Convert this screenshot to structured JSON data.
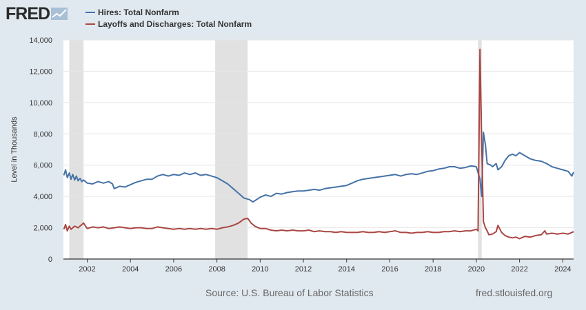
{
  "brand": {
    "logo_text": "FRED",
    "logo_icon": "chart-trend-icon"
  },
  "legend": [
    {
      "label": "Hires: Total Nonfarm",
      "color": "#4572a7"
    },
    {
      "label": "Layoffs and Discharges: Total Nonfarm",
      "color": "#aa4643"
    }
  ],
  "footer": {
    "source": "Source: U.S. Bureau of Labor Statistics",
    "url": "fred.stlouisfed.org"
  },
  "chart_data": {
    "type": "line",
    "ylabel": "Level in Thousands",
    "xlabel": "",
    "xlim": [
      2000.9,
      2024.5
    ],
    "ylim": [
      0,
      14000
    ],
    "y_ticks": [
      0,
      2000,
      4000,
      6000,
      8000,
      10000,
      12000,
      14000
    ],
    "y_tick_labels": [
      "0",
      "2,000",
      "4,000",
      "6,000",
      "8,000",
      "10,000",
      "12,000",
      "14,000"
    ],
    "x_ticks": [
      2002,
      2004,
      2006,
      2008,
      2010,
      2012,
      2014,
      2016,
      2018,
      2020,
      2022,
      2024
    ],
    "x_tick_labels": [
      "2002",
      "2004",
      "2006",
      "2008",
      "2010",
      "2012",
      "2014",
      "2016",
      "2018",
      "2020",
      "2022",
      "2024"
    ],
    "grid": "horizontal",
    "recessions": [
      [
        2001.17,
        2001.83
      ],
      [
        2007.92,
        2009.42
      ],
      [
        2020.08,
        2020.25
      ]
    ],
    "series": [
      {
        "name": "Hires: Total Nonfarm",
        "color": "#4572a7",
        "points": [
          [
            2000.92,
            5350
          ],
          [
            2001.0,
            5700
          ],
          [
            2001.08,
            5200
          ],
          [
            2001.17,
            5500
          ],
          [
            2001.25,
            5100
          ],
          [
            2001.33,
            5400
          ],
          [
            2001.42,
            5050
          ],
          [
            2001.5,
            5300
          ],
          [
            2001.58,
            5000
          ],
          [
            2001.67,
            5150
          ],
          [
            2001.75,
            4950
          ],
          [
            2001.83,
            5050
          ],
          [
            2002.0,
            4850
          ],
          [
            2002.25,
            4800
          ],
          [
            2002.5,
            4950
          ],
          [
            2002.75,
            4850
          ],
          [
            2003.0,
            4950
          ],
          [
            2003.17,
            4800
          ],
          [
            2003.25,
            4500
          ],
          [
            2003.5,
            4650
          ],
          [
            2003.75,
            4600
          ],
          [
            2004.0,
            4750
          ],
          [
            2004.25,
            4900
          ],
          [
            2004.5,
            5000
          ],
          [
            2004.75,
            5100
          ],
          [
            2005.0,
            5100
          ],
          [
            2005.25,
            5300
          ],
          [
            2005.5,
            5400
          ],
          [
            2005.75,
            5300
          ],
          [
            2006.0,
            5400
          ],
          [
            2006.25,
            5350
          ],
          [
            2006.5,
            5500
          ],
          [
            2006.75,
            5400
          ],
          [
            2007.0,
            5500
          ],
          [
            2007.25,
            5350
          ],
          [
            2007.5,
            5400
          ],
          [
            2007.75,
            5300
          ],
          [
            2008.0,
            5200
          ],
          [
            2008.25,
            5000
          ],
          [
            2008.5,
            4800
          ],
          [
            2008.75,
            4500
          ],
          [
            2009.0,
            4200
          ],
          [
            2009.25,
            3900
          ],
          [
            2009.5,
            3800
          ],
          [
            2009.67,
            3650
          ],
          [
            2010.0,
            3950
          ],
          [
            2010.25,
            4100
          ],
          [
            2010.5,
            4000
          ],
          [
            2010.75,
            4200
          ],
          [
            2011.0,
            4150
          ],
          [
            2011.25,
            4250
          ],
          [
            2011.5,
            4300
          ],
          [
            2011.75,
            4350
          ],
          [
            2012.0,
            4350
          ],
          [
            2012.25,
            4400
          ],
          [
            2012.5,
            4450
          ],
          [
            2012.75,
            4400
          ],
          [
            2013.0,
            4500
          ],
          [
            2013.25,
            4550
          ],
          [
            2013.5,
            4600
          ],
          [
            2013.75,
            4650
          ],
          [
            2014.0,
            4700
          ],
          [
            2014.25,
            4850
          ],
          [
            2014.5,
            5000
          ],
          [
            2014.75,
            5100
          ],
          [
            2015.0,
            5150
          ],
          [
            2015.25,
            5200
          ],
          [
            2015.5,
            5250
          ],
          [
            2015.75,
            5300
          ],
          [
            2016.0,
            5350
          ],
          [
            2016.25,
            5400
          ],
          [
            2016.5,
            5300
          ],
          [
            2016.75,
            5400
          ],
          [
            2017.0,
            5450
          ],
          [
            2017.25,
            5400
          ],
          [
            2017.5,
            5500
          ],
          [
            2017.75,
            5600
          ],
          [
            2018.0,
            5650
          ],
          [
            2018.25,
            5750
          ],
          [
            2018.5,
            5800
          ],
          [
            2018.75,
            5900
          ],
          [
            2019.0,
            5900
          ],
          [
            2019.25,
            5800
          ],
          [
            2019.5,
            5850
          ],
          [
            2019.75,
            5950
          ],
          [
            2020.0,
            5900
          ],
          [
            2020.17,
            5100
          ],
          [
            2020.25,
            4000
          ],
          [
            2020.33,
            8100
          ],
          [
            2020.42,
            7300
          ],
          [
            2020.5,
            6100
          ],
          [
            2020.67,
            6000
          ],
          [
            2020.75,
            5900
          ],
          [
            2020.92,
            6100
          ],
          [
            2021.0,
            5700
          ],
          [
            2021.17,
            5900
          ],
          [
            2021.33,
            6300
          ],
          [
            2021.5,
            6600
          ],
          [
            2021.67,
            6700
          ],
          [
            2021.83,
            6600
          ],
          [
            2022.0,
            6800
          ],
          [
            2022.25,
            6600
          ],
          [
            2022.5,
            6400
          ],
          [
            2022.75,
            6300
          ],
          [
            2023.0,
            6250
          ],
          [
            2023.25,
            6100
          ],
          [
            2023.5,
            5900
          ],
          [
            2023.75,
            5800
          ],
          [
            2024.0,
            5700
          ],
          [
            2024.25,
            5600
          ],
          [
            2024.42,
            5300
          ],
          [
            2024.5,
            5550
          ]
        ]
      },
      {
        "name": "Layoffs and Discharges: Total Nonfarm",
        "color": "#aa4643",
        "points": [
          [
            2000.92,
            1900
          ],
          [
            2001.0,
            2200
          ],
          [
            2001.08,
            1800
          ],
          [
            2001.17,
            2100
          ],
          [
            2001.25,
            1900
          ],
          [
            2001.42,
            2100
          ],
          [
            2001.58,
            2000
          ],
          [
            2001.75,
            2200
          ],
          [
            2001.83,
            2300
          ],
          [
            2002.0,
            1950
          ],
          [
            2002.25,
            2050
          ],
          [
            2002.5,
            2000
          ],
          [
            2002.75,
            2050
          ],
          [
            2003.0,
            1950
          ],
          [
            2003.25,
            2000
          ],
          [
            2003.5,
            2050
          ],
          [
            2003.75,
            2000
          ],
          [
            2004.0,
            1950
          ],
          [
            2004.25,
            2000
          ],
          [
            2004.5,
            2000
          ],
          [
            2004.75,
            1950
          ],
          [
            2005.0,
            1950
          ],
          [
            2005.25,
            2050
          ],
          [
            2005.5,
            2000
          ],
          [
            2005.75,
            1950
          ],
          [
            2006.0,
            1900
          ],
          [
            2006.25,
            1950
          ],
          [
            2006.5,
            1900
          ],
          [
            2006.75,
            1950
          ],
          [
            2007.0,
            1900
          ],
          [
            2007.25,
            1950
          ],
          [
            2007.5,
            1900
          ],
          [
            2007.75,
            1950
          ],
          [
            2008.0,
            1900
          ],
          [
            2008.25,
            2000
          ],
          [
            2008.5,
            2050
          ],
          [
            2008.75,
            2150
          ],
          [
            2009.0,
            2300
          ],
          [
            2009.25,
            2550
          ],
          [
            2009.42,
            2600
          ],
          [
            2009.58,
            2300
          ],
          [
            2009.75,
            2100
          ],
          [
            2010.0,
            1950
          ],
          [
            2010.25,
            1950
          ],
          [
            2010.5,
            1850
          ],
          [
            2010.75,
            1800
          ],
          [
            2011.0,
            1850
          ],
          [
            2011.25,
            1800
          ],
          [
            2011.5,
            1850
          ],
          [
            2011.75,
            1800
          ],
          [
            2012.0,
            1800
          ],
          [
            2012.25,
            1850
          ],
          [
            2012.5,
            1750
          ],
          [
            2012.75,
            1800
          ],
          [
            2013.0,
            1750
          ],
          [
            2013.25,
            1750
          ],
          [
            2013.5,
            1700
          ],
          [
            2013.75,
            1750
          ],
          [
            2014.0,
            1700
          ],
          [
            2014.25,
            1700
          ],
          [
            2014.5,
            1700
          ],
          [
            2014.75,
            1750
          ],
          [
            2015.0,
            1700
          ],
          [
            2015.25,
            1700
          ],
          [
            2015.5,
            1750
          ],
          [
            2015.75,
            1700
          ],
          [
            2016.0,
            1750
          ],
          [
            2016.25,
            1800
          ],
          [
            2016.5,
            1700
          ],
          [
            2016.75,
            1700
          ],
          [
            2017.0,
            1650
          ],
          [
            2017.25,
            1700
          ],
          [
            2017.5,
            1700
          ],
          [
            2017.75,
            1750
          ],
          [
            2018.0,
            1700
          ],
          [
            2018.25,
            1700
          ],
          [
            2018.5,
            1750
          ],
          [
            2018.75,
            1750
          ],
          [
            2019.0,
            1800
          ],
          [
            2019.25,
            1750
          ],
          [
            2019.5,
            1800
          ],
          [
            2019.75,
            1800
          ],
          [
            2020.0,
            1900
          ],
          [
            2020.08,
            1800
          ],
          [
            2020.17,
            13400
          ],
          [
            2020.25,
            7500
          ],
          [
            2020.33,
            2400
          ],
          [
            2020.42,
            2000
          ],
          [
            2020.5,
            1800
          ],
          [
            2020.58,
            1550
          ],
          [
            2020.75,
            1600
          ],
          [
            2020.92,
            1750
          ],
          [
            2021.0,
            2150
          ],
          [
            2021.17,
            1700
          ],
          [
            2021.33,
            1500
          ],
          [
            2021.5,
            1400
          ],
          [
            2021.67,
            1350
          ],
          [
            2021.83,
            1400
          ],
          [
            2022.0,
            1300
          ],
          [
            2022.25,
            1450
          ],
          [
            2022.5,
            1400
          ],
          [
            2022.75,
            1500
          ],
          [
            2023.0,
            1550
          ],
          [
            2023.17,
            1800
          ],
          [
            2023.25,
            1600
          ],
          [
            2023.5,
            1650
          ],
          [
            2023.75,
            1600
          ],
          [
            2024.0,
            1650
          ],
          [
            2024.25,
            1600
          ],
          [
            2024.42,
            1700
          ],
          [
            2024.5,
            1750
          ]
        ]
      }
    ]
  }
}
